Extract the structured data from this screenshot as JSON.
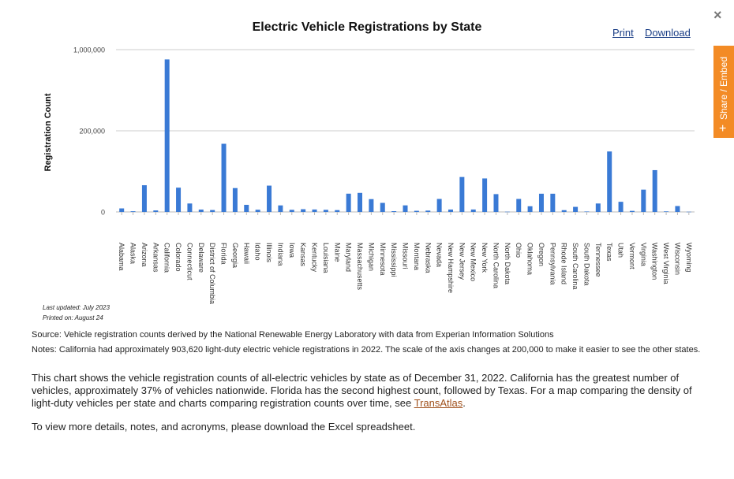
{
  "chart_data": {
    "type": "bar",
    "title": "Electric Vehicle Registrations by State",
    "ylabel": "Registration Count",
    "xlabel": "",
    "y_ticks": [
      "1,000,000",
      "200,000",
      "0"
    ],
    "axis_break": 200000,
    "grid": true,
    "color": "#3a7ad5",
    "categories": [
      "Alabama",
      "Alaska",
      "Arizona",
      "Arkansas",
      "California",
      "Colorado",
      "Connecticut",
      "Delaware",
      "District of Columbia",
      "Florida",
      "Georgia",
      "Hawaii",
      "Idaho",
      "Illinois",
      "Indiana",
      "Iowa",
      "Kansas",
      "Kentucky",
      "Louisiana",
      "Maine",
      "Maryland",
      "Massachusetts",
      "Michigan",
      "Minnesota",
      "Mississippi",
      "Missouri",
      "Montana",
      "Nebraska",
      "Nevada",
      "New Hampshire",
      "New Jersey",
      "New Mexico",
      "New York",
      "North Carolina",
      "North Dakota",
      "Ohio",
      "Oklahoma",
      "Oregon",
      "Pennsylvania",
      "Rhode Island",
      "South Carolina",
      "South Dakota",
      "Tennessee",
      "Texas",
      "Utah",
      "Vermont",
      "Virginia",
      "Washington",
      "West Virginia",
      "Wisconsin",
      "Wyoming"
    ],
    "values": [
      8700,
      1700,
      65800,
      3700,
      903620,
      59800,
      20800,
      5800,
      4700,
      167990,
      58800,
      17500,
      5400,
      64900,
      16100,
      5200,
      6700,
      6000,
      5200,
      4500,
      45000,
      47000,
      31600,
      22300,
      1900,
      16200,
      2800,
      3300,
      32000,
      5900,
      86100,
      6000,
      82600,
      43900,
      600,
      32000,
      14000,
      44900,
      44900,
      4400,
      12500,
      1100,
      20800,
      149000,
      25000,
      2600,
      55000,
      103000,
      1400,
      14500,
      500
    ]
  },
  "links": {
    "print": "Print",
    "download": "Download"
  },
  "share": {
    "label": "Share / Embed",
    "plus": "+"
  },
  "close_symbol": "×",
  "notes": {
    "last_updated": "Last updated: July 2023",
    "printed_on": "Printed on: August 24",
    "source": "Source: Vehicle registration counts derived by the National Renewable Energy Laboratory with data from Experian Information Solutions",
    "notes": "Notes: California had approximately 903,620 light-duty electric vehicle registrations in 2022. The scale of the axis changes at 200,000 to make it easier to see the other states."
  },
  "description": {
    "text_before": "This chart shows the vehicle registration counts of all-electric vehicles by state as of December 31, 2022. California has the greatest number of vehicles, approximately 37% of vehicles nationwide. Florida has the second highest count, followed by Texas. For a map comparing the density of light-duty vehicles per state and charts comparing registration counts over time, see ",
    "link": "TransAtlas",
    "text_after": "."
  },
  "excel_note": "To view more details, notes, and acronyms, please download the Excel spreadsheet."
}
